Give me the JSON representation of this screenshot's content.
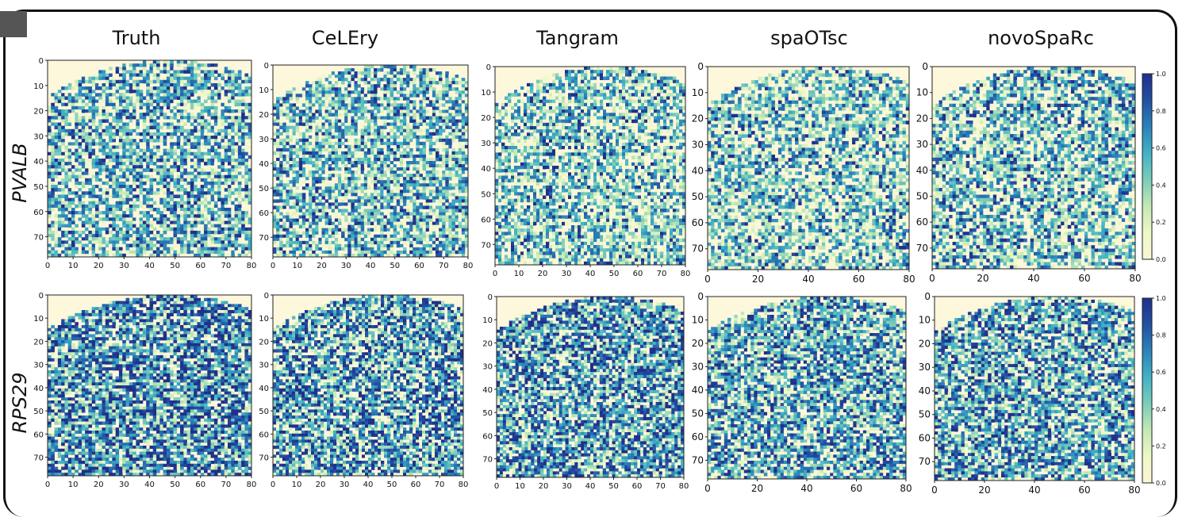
{
  "chart_data": {
    "type": "heatmap",
    "methods": [
      "Truth",
      "CeLEry",
      "Tangram",
      "spaOTsc",
      "novoSpaRc"
    ],
    "genes": [
      "PVALB",
      "RPS29"
    ],
    "x_range": [
      0,
      80
    ],
    "y_range": [
      0,
      78
    ],
    "y_ticks": [
      "0",
      "10",
      "20",
      "30",
      "40",
      "50",
      "60",
      "70"
    ],
    "x_ticks_fine": [
      "0",
      "10",
      "20",
      "30",
      "40",
      "50",
      "60",
      "70",
      "80"
    ],
    "x_ticks_coarse": [
      "0",
      "20",
      "40",
      "60",
      "80"
    ],
    "colorbar": {
      "range": [
        0.0,
        1.0
      ],
      "ticks": [
        "0.0",
        "0.2",
        "0.4",
        "0.6",
        "0.8",
        "1.0"
      ],
      "colors": [
        "#fcf6d6",
        "#eef8c8",
        "#c4e8b5",
        "#7cccbb",
        "#41b2c4",
        "#2b82b9",
        "#2350a3",
        "#20308a"
      ]
    },
    "background_color": "#fdf7dc",
    "panels": [
      {
        "gene": "PVALB",
        "method": "Truth",
        "mean_expression": 0.42
      },
      {
        "gene": "PVALB",
        "method": "CeLEry",
        "mean_expression": 0.4
      },
      {
        "gene": "PVALB",
        "method": "Tangram",
        "mean_expression": 0.35
      },
      {
        "gene": "PVALB",
        "method": "spaOTsc",
        "mean_expression": 0.34
      },
      {
        "gene": "PVALB",
        "method": "novoSpaRc",
        "mean_expression": 0.4
      },
      {
        "gene": "RPS29",
        "method": "Truth",
        "mean_expression": 0.6
      },
      {
        "gene": "RPS29",
        "method": "CeLEry",
        "mean_expression": 0.55
      },
      {
        "gene": "RPS29",
        "method": "Tangram",
        "mean_expression": 0.55
      },
      {
        "gene": "RPS29",
        "method": "spaOTsc",
        "mean_expression": 0.5
      },
      {
        "gene": "RPS29",
        "method": "novoSpaRc",
        "mean_expression": 0.52
      }
    ]
  }
}
